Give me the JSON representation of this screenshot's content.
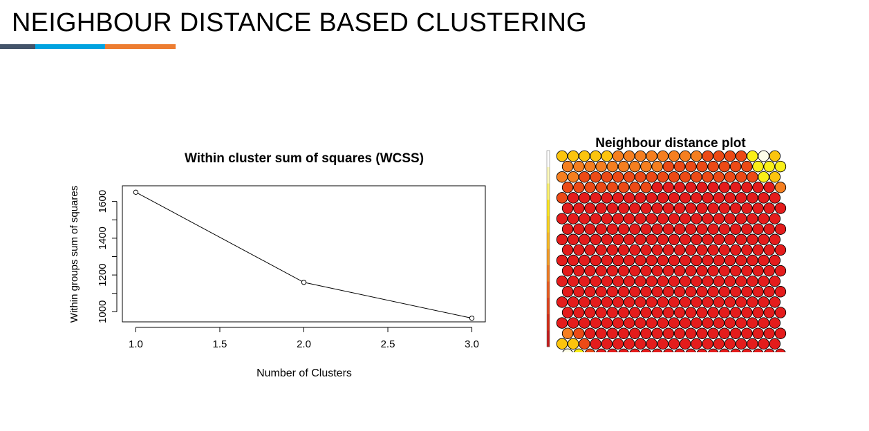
{
  "page": {
    "title": "NEIGHBOUR DISTANCE BASED CLUSTERING",
    "accent_colors": [
      "#44546a",
      "#00a3e0",
      "#ed7d31"
    ]
  },
  "chart_data": [
    {
      "type": "line",
      "title": "Within cluster sum of squares (WCSS)",
      "xlabel": "Number of Clusters",
      "ylabel": "Within groups sum of squares",
      "x": [
        1,
        2,
        3
      ],
      "y": [
        1650,
        1160,
        965
      ],
      "xlim": [
        0.92,
        3.08
      ],
      "ylim": [
        945,
        1685
      ],
      "xticks": [
        1.0,
        1.5,
        2.0,
        2.5,
        3.0
      ],
      "xtick_labels": [
        "1.0",
        "1.5",
        "2.0",
        "2.5",
        "3.0"
      ],
      "yticks": [
        1000,
        1200,
        1400,
        1600
      ],
      "ytick_labels": [
        "1000",
        "1200",
        "1400",
        "1600"
      ],
      "marker": "open-circle",
      "line_color": "#000000"
    },
    {
      "type": "heatmap",
      "title": "Neighbour distance plot",
      "layout": "hexagonal",
      "rows": 20,
      "cols": 20,
      "palette": {
        "0": "#e41c1c",
        "1": "#ec4a16",
        "2": "#f57f20",
        "3": "#fcc40e",
        "4": "#f9ef18",
        "5": "#fdfde8"
      },
      "cells": [
        "33333222222221111453",
        "22222222211111111444",
        "22111111111111111143",
        "11111111000000000002",
        "10000000000000000000",
        "00000000000000000000",
        "00000000000000000000",
        "00000000000000000000",
        "00000000000000000000",
        "00000000000000000000",
        "00000000000000000000",
        "00000000000000000000",
        "00000000000000000000",
        "00000000000000000000",
        "00000000000000000000",
        "00000000000000000000",
        "00000000000000000000",
        "21000000000000000000",
        "33100000000000000000",
        "54100000000000000000"
      ],
      "legend": {
        "type": "colorbar",
        "colors": [
          "#c41a1a",
          "#d42a14",
          "#e0401a",
          "#ea5a1c",
          "#f07a20",
          "#f49a22",
          "#f8b820",
          "#fad21c",
          "#fce51c",
          "#fdf26a",
          "#fefaba",
          "#ffffff"
        ]
      }
    }
  ]
}
